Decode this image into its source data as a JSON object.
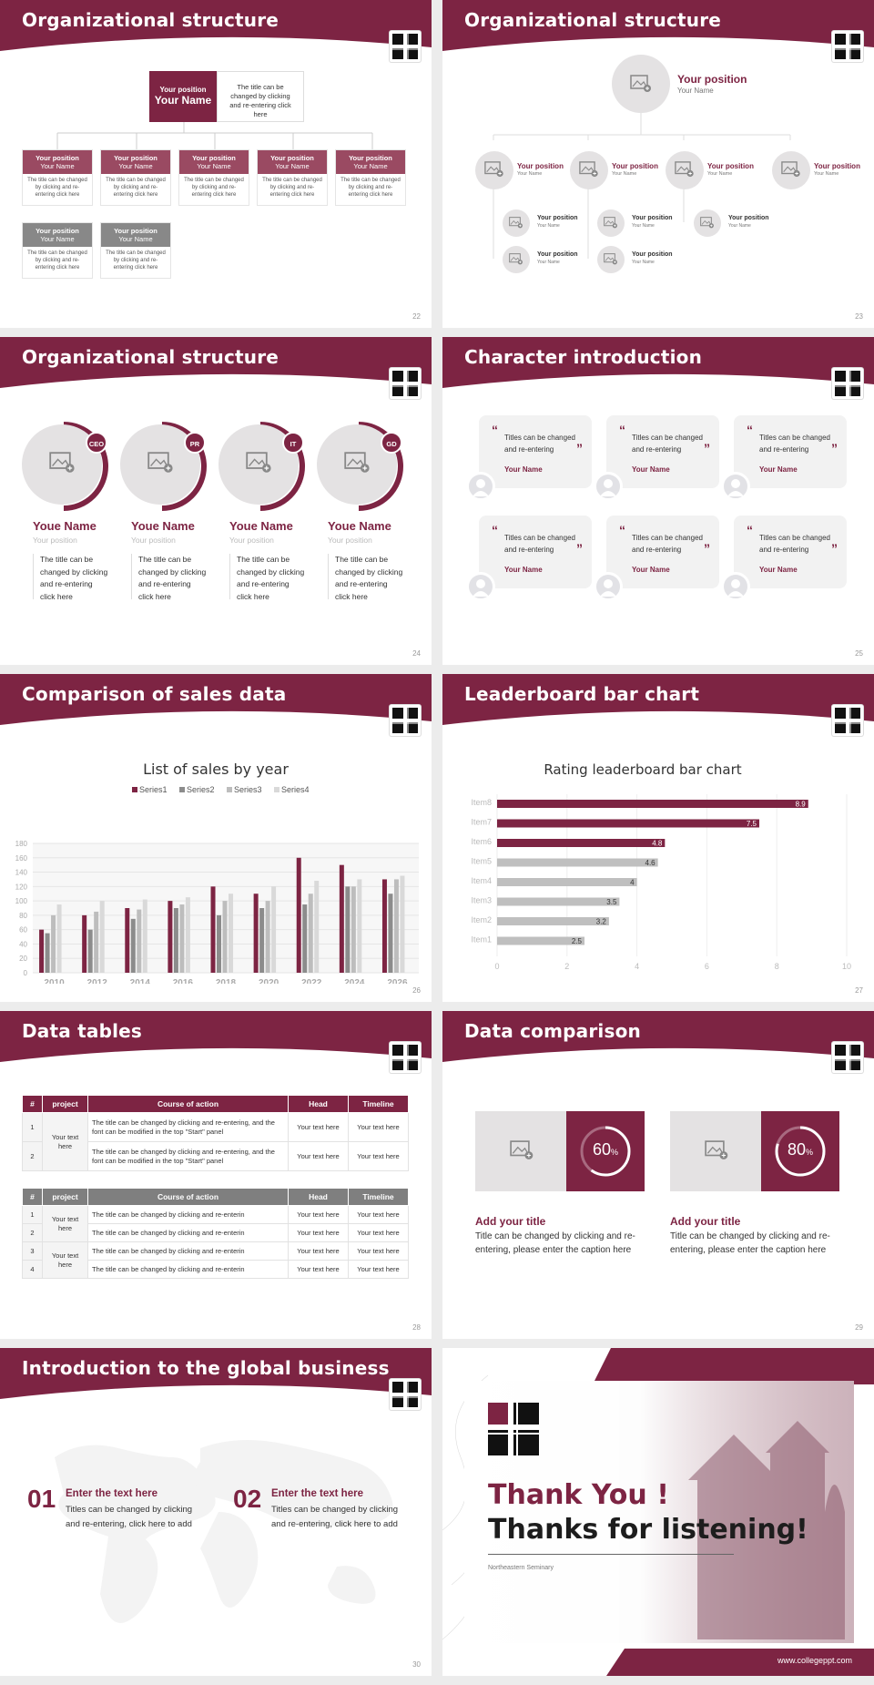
{
  "colors": {
    "brand": "#7d2443",
    "gray": "#888888",
    "light": "#e4e2e3"
  },
  "slides": {
    "s22": {
      "title": "Organizational structure",
      "page": "22",
      "top": {
        "pos": "Your position",
        "name": "Your Name",
        "desc": "The title can be changed by clicking and re-entering click here"
      },
      "row1": [
        {
          "pos": "Your position",
          "name": "Your Name",
          "desc": "The title can be changed by clicking and re-entering click here"
        },
        {
          "pos": "Your position",
          "name": "Your Name",
          "desc": "The title can be changed by clicking and re-entering click here"
        },
        {
          "pos": "Your position",
          "name": "Your Name",
          "desc": "The title can be changed by clicking and re-entering click here"
        },
        {
          "pos": "Your position",
          "name": "Your Name",
          "desc": "The title can be changed by clicking and re-entering click here"
        },
        {
          "pos": "Your position",
          "name": "Your Name",
          "desc": "The title can be changed by clicking and re-entering click here"
        }
      ],
      "row2": [
        {
          "pos": "Your position",
          "name": "Your Name",
          "desc": "The title can be changed by clicking and re-entering click here"
        },
        {
          "pos": "Your position",
          "name": "Your Name",
          "desc": "The title can be changed by clicking and re-entering click here"
        }
      ]
    },
    "s23": {
      "title": "Organizational structure",
      "page": "23",
      "top": {
        "pos": "Your position",
        "name": "Your Name"
      },
      "mid": [
        {
          "pos": "Your position",
          "name": "Your Name"
        },
        {
          "pos": "Your position",
          "name": "Your Name"
        },
        {
          "pos": "Your position",
          "name": "Your Name"
        },
        {
          "pos": "Your position",
          "name": "Your Name"
        }
      ],
      "sub": [
        {
          "pos": "Your position",
          "name": "Your Name"
        },
        {
          "pos": "Your position",
          "name": "Your Name"
        },
        {
          "pos": "Your position",
          "name": "Your Name"
        },
        {
          "pos": "Your position",
          "name": "Your Name"
        },
        {
          "pos": "Your position",
          "name": "Your Name"
        }
      ]
    },
    "s24": {
      "title": "Organizational structure",
      "page": "24",
      "items": [
        {
          "badge": "CEO",
          "name": "Youe Name",
          "pos": "Your position",
          "desc": "The title can be changed by clicking and re-entering click here"
        },
        {
          "badge": "PR",
          "name": "Youe Name",
          "pos": "Your position",
          "desc": "The title can be changed by clicking and re-entering click here"
        },
        {
          "badge": "IT",
          "name": "Youe Name",
          "pos": "Your position",
          "desc": "The title can be changed by clicking and re-entering click here"
        },
        {
          "badge": "GD",
          "name": "Youe Name",
          "pos": "Your position",
          "desc": "The title can be changed by clicking and re-entering click here"
        }
      ]
    },
    "s25": {
      "title": "Character introduction",
      "page": "25",
      "cards": [
        {
          "text": "Titles can be changed and re-entering",
          "name": "Your Name"
        },
        {
          "text": "Titles can be changed and re-entering",
          "name": "Your Name"
        },
        {
          "text": "Titles can be changed and re-entering",
          "name": "Your Name"
        },
        {
          "text": "Titles can be changed and re-entering",
          "name": "Your Name"
        },
        {
          "text": "Titles can be changed and re-entering",
          "name": "Your Name"
        },
        {
          "text": "Titles can be changed and re-entering",
          "name": "Your Name"
        }
      ]
    },
    "s26": {
      "title": "Comparison of sales data",
      "page": "26"
    },
    "s27": {
      "title": "Leaderboard bar chart",
      "page": "27"
    },
    "s28": {
      "title": "Data tables",
      "page": "28",
      "t1": {
        "head": [
          "#",
          "project",
          "Course of action",
          "Head",
          "Timeline"
        ],
        "project": "Your text here",
        "rows": [
          {
            "n": "1",
            "action": "The title can be changed by clicking and re-entering, and the font can be modified in the top \"Start\" panel",
            "head": "Your text here",
            "time": "Your text here"
          },
          {
            "n": "2",
            "action": "The title can be changed by clicking and re-entering, and the font can be modified in the top \"Start\" panel",
            "head": "Your text here",
            "time": "Your text here"
          }
        ]
      },
      "t2": {
        "head": [
          "#",
          "project",
          "Course of action",
          "Head",
          "Timeline"
        ],
        "projects": [
          "Your text here",
          "Your text here"
        ],
        "rows": [
          {
            "n": "1",
            "action": "The title can be changed by clicking and re-enterin",
            "head": "Your text here",
            "time": "Your text here"
          },
          {
            "n": "2",
            "action": "The title can be changed by clicking and re-enterin",
            "head": "Your text here",
            "time": "Your text here"
          },
          {
            "n": "3",
            "action": "The title can be changed by clicking and re-enterin",
            "head": "Your text here",
            "time": "Your text here"
          },
          {
            "n": "4",
            "action": "The title can be changed by clicking and re-enterin",
            "head": "Your text here",
            "time": "Your text here"
          }
        ]
      }
    },
    "s29": {
      "title": "Data comparison",
      "page": "29",
      "items": [
        {
          "pct": "60",
          "unit": "%",
          "value": 60,
          "title": "Add your title",
          "desc": "Title can be changed by clicking and re-entering, please enter the caption here"
        },
        {
          "pct": "80",
          "unit": "%",
          "value": 80,
          "title": "Add your title",
          "desc": "Title can be changed by clicking and re-entering, please enter the caption here"
        }
      ]
    },
    "s30": {
      "title": "Introduction to the global business",
      "page": "30",
      "items": [
        {
          "num": "01",
          "head": "Enter the text here",
          "desc": "Titles can be changed by clicking and re-entering, click here to add"
        },
        {
          "num": "02",
          "head": "Enter the text here",
          "desc": "Titles can be changed by clicking and re-entering, click here to add"
        }
      ]
    },
    "s31": {
      "line1": "Thank You !",
      "line2": "Thanks for listening!",
      "org": "Northeastern Seminary",
      "url": "www.collegeppt.com"
    }
  },
  "chart_data": [
    {
      "type": "bar",
      "title": "List of sales by year",
      "categories": [
        "2010",
        "2012",
        "2014",
        "2016",
        "2018",
        "2020",
        "2022",
        "2024",
        "2026"
      ],
      "series": [
        {
          "name": "Series1",
          "color": "#7d2443",
          "values": [
            60,
            80,
            90,
            100,
            120,
            110,
            160,
            150,
            130
          ]
        },
        {
          "name": "Series2",
          "color": "#8c8c8c",
          "values": [
            55,
            60,
            75,
            90,
            80,
            90,
            95,
            120,
            110
          ]
        },
        {
          "name": "Series3",
          "color": "#bdbdbd",
          "values": [
            80,
            85,
            88,
            95,
            100,
            100,
            110,
            120,
            130
          ]
        },
        {
          "name": "Series4",
          "color": "#d9d9d9",
          "values": [
            95,
            100,
            102,
            105,
            110,
            120,
            128,
            130,
            135
          ]
        }
      ],
      "ylim": [
        0,
        180
      ],
      "yticks": [
        "0",
        "20",
        "40",
        "60",
        "80",
        "100",
        "120",
        "140",
        "160",
        "180"
      ],
      "legend": "top"
    },
    {
      "type": "bar",
      "orientation": "horizontal",
      "title": "Rating leaderboard bar chart",
      "categories": [
        "Item8",
        "Item7",
        "Item6",
        "Item5",
        "Item4",
        "Item3",
        "Item2",
        "Item1"
      ],
      "values": [
        8.9,
        7.5,
        4.8,
        4.6,
        4,
        3.5,
        3.2,
        2.5
      ],
      "labels": [
        "8.9",
        "7.5",
        "4.8",
        "4.6",
        "4",
        "3.5",
        "3.2",
        "2.5"
      ],
      "highlight": [
        true,
        true,
        true,
        false,
        false,
        false,
        false,
        false
      ],
      "xlim": [
        0,
        10
      ],
      "xticks": [
        "0",
        "2",
        "4",
        "6",
        "8",
        "10"
      ]
    }
  ]
}
